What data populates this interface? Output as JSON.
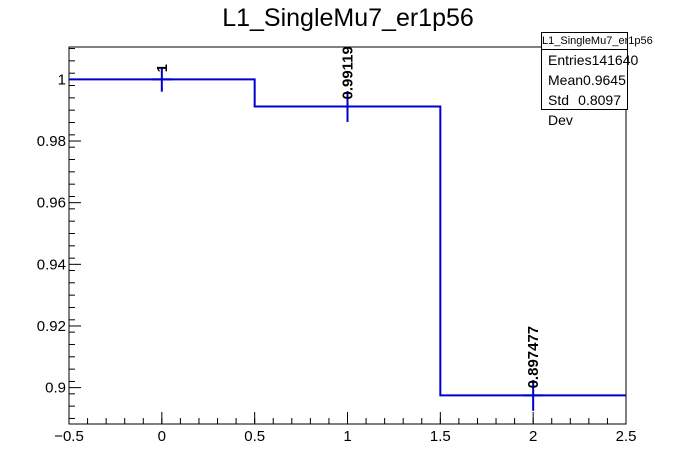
{
  "chart_data": {
    "type": "histogram",
    "title": "L1_SingleMu7_er1p56",
    "xlabel": "",
    "ylabel": "",
    "xlim": [
      -0.5,
      2.5
    ],
    "ylim": [
      0.8882,
      1.0105
    ],
    "grid": false,
    "bin_edges": [
      -0.5,
      0.5,
      1.5,
      2.5
    ],
    "bin_centers": [
      0,
      1,
      2
    ],
    "values": [
      1.0,
      0.99119,
      0.897477
    ],
    "errors": [
      0.004,
      0.005,
      0.005
    ],
    "data_labels": [
      "1",
      "0.99119",
      "0.897477"
    ],
    "x_ticks": [
      {
        "value": -0.5,
        "label": "−0.5"
      },
      {
        "value": 0,
        "label": "0"
      },
      {
        "value": 0.5,
        "label": "0.5"
      },
      {
        "value": 1,
        "label": "1"
      },
      {
        "value": 1.5,
        "label": "1.5"
      },
      {
        "value": 2,
        "label": "2"
      },
      {
        "value": 2.5,
        "label": "2.5"
      }
    ],
    "y_ticks": [
      {
        "value": 0.9,
        "label": "0.9"
      },
      {
        "value": 0.92,
        "label": "0.92"
      },
      {
        "value": 0.94,
        "label": "0.94"
      },
      {
        "value": 0.96,
        "label": "0.96"
      },
      {
        "value": 0.98,
        "label": "0.98"
      },
      {
        "value": 1.0,
        "label": "1"
      }
    ],
    "line_color": "#0000cc",
    "stats": {
      "name": "L1_SingleMu7_er1p56",
      "rows": [
        {
          "label": "Entries",
          "value": "141640"
        },
        {
          "label": "Mean",
          "value": "0.9645"
        },
        {
          "label": "Std Dev",
          "value": "0.8097"
        }
      ],
      "placement": "top-right"
    }
  }
}
